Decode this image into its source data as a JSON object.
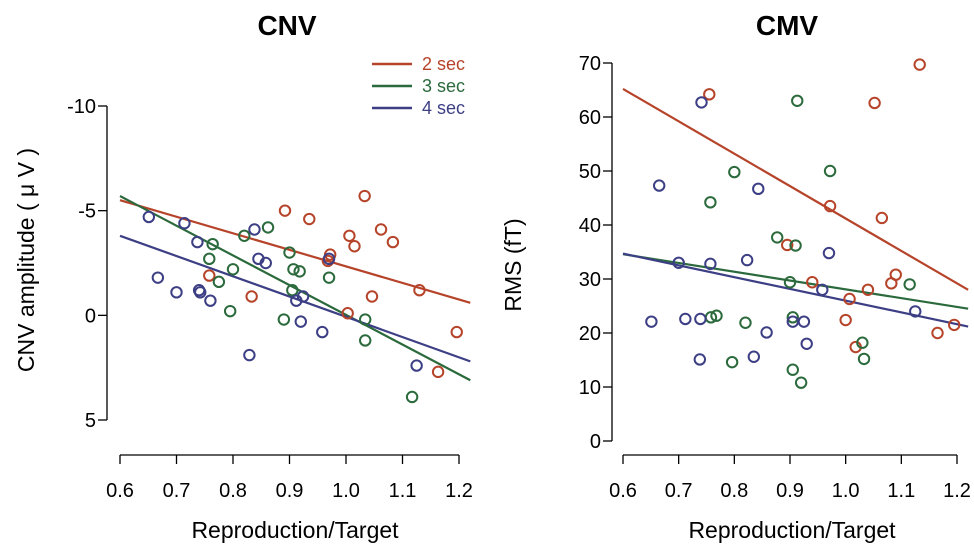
{
  "chart_data": [
    {
      "type": "scatter",
      "title": "CNV",
      "xlabel": "Reproduction/Target",
      "ylabel": "CNV amplitude ( μ V )",
      "xlim": [
        0.6,
        1.2
      ],
      "ylim": [
        5,
        -10
      ],
      "y_inverted": true,
      "xticks": [
        "0.6",
        "0.7",
        "0.8",
        "0.9",
        "1.0",
        "1.1",
        "1.2"
      ],
      "yticks": [
        "-10",
        "-5",
        "0",
        "5"
      ],
      "legend_position": "top-right",
      "series": [
        {
          "name": "2 sec",
          "color": "#b6442a",
          "points": [
            [
              0.758,
              -1.9
            ],
            [
              0.833,
              -0.9
            ],
            [
              0.892,
              -5.0
            ],
            [
              0.935,
              -4.6
            ],
            [
              0.972,
              -2.9
            ],
            [
              0.968,
              -2.6
            ],
            [
              1.003,
              -0.1
            ],
            [
              1.006,
              -3.8
            ],
            [
              1.015,
              -3.3
            ],
            [
              1.033,
              -5.7
            ],
            [
              1.046,
              -0.9
            ],
            [
              1.062,
              -4.1
            ],
            [
              1.083,
              -3.5
            ],
            [
              1.13,
              -1.2
            ],
            [
              1.163,
              2.7
            ],
            [
              1.196,
              0.8
            ]
          ],
          "fit": [
            [
              0.6,
              -5.5
            ],
            [
              1.22,
              -0.6
            ]
          ]
        },
        {
          "name": "3 sec",
          "color": "#2b6a3c",
          "points": [
            [
              0.758,
              -2.7
            ],
            [
              0.764,
              -3.4
            ],
            [
              0.775,
              -1.6
            ],
            [
              0.795,
              -0.2
            ],
            [
              0.8,
              -2.2
            ],
            [
              0.82,
              -3.8
            ],
            [
              0.862,
              -4.2
            ],
            [
              0.89,
              0.2
            ],
            [
              0.9,
              -3.0
            ],
            [
              0.905,
              -1.2
            ],
            [
              0.907,
              -2.2
            ],
            [
              0.918,
              -2.1
            ],
            [
              0.97,
              -1.8
            ],
            [
              1.034,
              1.2
            ],
            [
              1.034,
              0.2
            ],
            [
              1.117,
              3.9
            ]
          ],
          "fit": [
            [
              0.6,
              -5.7
            ],
            [
              1.22,
              3.1
            ]
          ]
        },
        {
          "name": "4 sec",
          "color": "#3d3f85",
          "points": [
            [
              0.651,
              -4.7
            ],
            [
              0.667,
              -1.8
            ],
            [
              0.7,
              -1.1
            ],
            [
              0.714,
              -4.4
            ],
            [
              0.737,
              -3.5
            ],
            [
              0.74,
              -1.2
            ],
            [
              0.742,
              -1.1
            ],
            [
              0.76,
              -0.7
            ],
            [
              0.829,
              1.9
            ],
            [
              0.838,
              -4.1
            ],
            [
              0.845,
              -2.7
            ],
            [
              0.858,
              -2.5
            ],
            [
              0.912,
              -0.7
            ],
            [
              0.92,
              0.3
            ],
            [
              0.924,
              -0.9
            ],
            [
              0.958,
              0.8
            ],
            [
              0.97,
              -2.7
            ],
            [
              1.125,
              2.4
            ]
          ],
          "fit": [
            [
              0.6,
              -3.8
            ],
            [
              1.22,
              2.2
            ]
          ]
        }
      ]
    },
    {
      "type": "scatter",
      "title": "CMV",
      "xlabel": "Reproduction/Target",
      "ylabel": "RMS (fT)",
      "xlim": [
        0.6,
        1.2
      ],
      "ylim": [
        0,
        70
      ],
      "xticks": [
        "0.6",
        "0.7",
        "0.8",
        "0.9",
        "1.0",
        "1.1",
        "1.2"
      ],
      "yticks": [
        "0",
        "10",
        "20",
        "30",
        "40",
        "50",
        "60",
        "70"
      ],
      "series": [
        {
          "name": "2 sec",
          "color": "#b6442a",
          "points": [
            [
              0.755,
              64.2
            ],
            [
              0.895,
              36.3
            ],
            [
              0.972,
              43.5
            ],
            [
              0.94,
              29.4
            ],
            [
              1.0,
              22.4
            ],
            [
              1.007,
              26.3
            ],
            [
              1.018,
              17.4
            ],
            [
              1.04,
              28.0
            ],
            [
              1.052,
              62.6
            ],
            [
              1.065,
              41.3
            ],
            [
              1.082,
              29.2
            ],
            [
              1.09,
              30.8
            ],
            [
              1.133,
              69.7
            ],
            [
              1.165,
              20.0
            ],
            [
              1.195,
              21.5
            ]
          ],
          "fit": [
            [
              0.6,
              65.2
            ],
            [
              1.22,
              28.0
            ]
          ]
        },
        {
          "name": "3 sec",
          "color": "#2b6a3c",
          "points": [
            [
              0.757,
              44.2
            ],
            [
              0.758,
              22.9
            ],
            [
              0.768,
              23.2
            ],
            [
              0.796,
              14.6
            ],
            [
              0.8,
              49.8
            ],
            [
              0.82,
              21.9
            ],
            [
              0.877,
              37.7
            ],
            [
              0.9,
              29.4
            ],
            [
              0.905,
              13.2
            ],
            [
              0.905,
              22.9
            ],
            [
              0.91,
              36.2
            ],
            [
              0.913,
              63.0
            ],
            [
              0.92,
              10.8
            ],
            [
              0.972,
              50.0
            ],
            [
              1.03,
              18.2
            ],
            [
              1.033,
              15.2
            ],
            [
              1.115,
              29.0
            ]
          ],
          "fit": [
            [
              0.6,
              34.6
            ],
            [
              1.22,
              24.5
            ]
          ]
        },
        {
          "name": "4 sec",
          "color": "#3d3f85",
          "points": [
            [
              0.651,
              22.1
            ],
            [
              0.665,
              47.3
            ],
            [
              0.7,
              33.0
            ],
            [
              0.712,
              22.6
            ],
            [
              0.738,
              15.1
            ],
            [
              0.739,
              22.6
            ],
            [
              0.741,
              62.7
            ],
            [
              0.757,
              32.8
            ],
            [
              0.823,
              33.5
            ],
            [
              0.835,
              15.6
            ],
            [
              0.843,
              46.7
            ],
            [
              0.858,
              20.1
            ],
            [
              0.905,
              22.1
            ],
            [
              0.925,
              22.1
            ],
            [
              0.93,
              18.0
            ],
            [
              0.958,
              28.0
            ],
            [
              0.97,
              34.8
            ],
            [
              1.125,
              24.0
            ]
          ],
          "fit": [
            [
              0.6,
              34.7
            ],
            [
              1.22,
              21.2
            ]
          ]
        }
      ]
    }
  ]
}
